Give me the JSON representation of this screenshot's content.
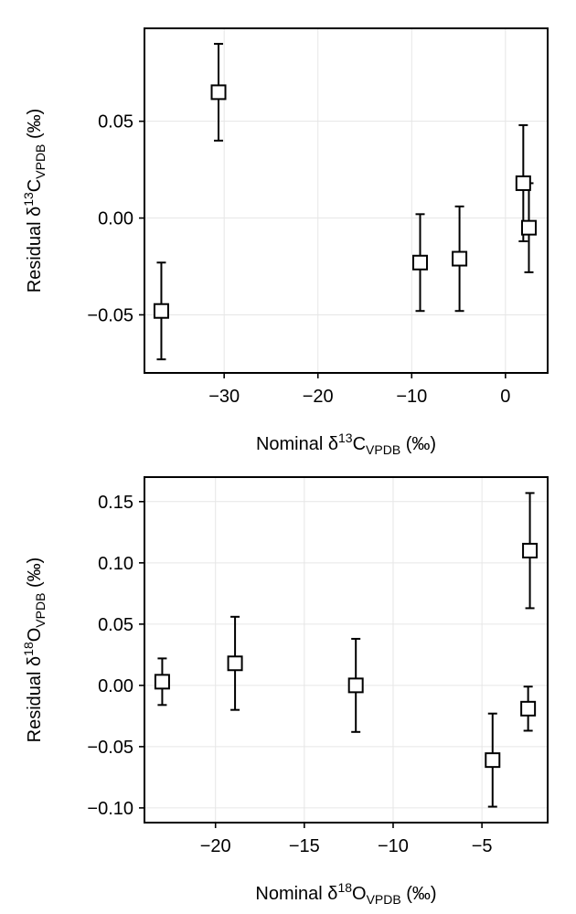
{
  "chart_data": [
    {
      "type": "scatter",
      "id": "carbon",
      "xlabel": {
        "pre": "Nominal δ",
        "sup": "13",
        "mid": "C",
        "sub": "VPDB",
        "post": " (‰)"
      },
      "ylabel": {
        "pre": "Residual δ",
        "sup": "13",
        "mid": "C",
        "sub": "VPDB",
        "post": " (‰)"
      },
      "xlim": [
        -38.5,
        4.5
      ],
      "ylim": [
        -0.08,
        0.098
      ],
      "xticks": [
        -30,
        -20,
        -10,
        0
      ],
      "xtick_labels": [
        "−30",
        "−20",
        "−10",
        "0"
      ],
      "yticks": [
        -0.05,
        0.0,
        0.05
      ],
      "ytick_labels": [
        "−0.05",
        "0.00",
        "0.05"
      ],
      "grid": true,
      "marker": "open-square",
      "points": [
        {
          "x": -36.7,
          "y": -0.048,
          "err": 0.025
        },
        {
          "x": -30.6,
          "y": 0.065,
          "err": 0.025
        },
        {
          "x": -9.1,
          "y": -0.023,
          "err": 0.025
        },
        {
          "x": -4.9,
          "y": -0.021,
          "err": 0.027
        },
        {
          "x": 1.9,
          "y": 0.018,
          "err": 0.03
        },
        {
          "x": 2.5,
          "y": -0.005,
          "err": 0.023
        }
      ]
    },
    {
      "type": "scatter",
      "id": "oxygen",
      "xlabel": {
        "pre": "Nominal δ",
        "sup": "18",
        "mid": "O",
        "sub": "VPDB",
        "post": " (‰)"
      },
      "ylabel": {
        "pre": "Residual δ",
        "sup": "18",
        "mid": "O",
        "sub": "VPDB",
        "post": " (‰)"
      },
      "xlim": [
        -24.0,
        -1.3
      ],
      "ylim": [
        -0.112,
        0.17
      ],
      "xticks": [
        -20,
        -15,
        -10,
        -5
      ],
      "xtick_labels": [
        "−20",
        "−15",
        "−10",
        "−5"
      ],
      "yticks": [
        -0.1,
        -0.05,
        0.0,
        0.05,
        0.1,
        0.15
      ],
      "ytick_labels": [
        "−0.10",
        "−0.05",
        "0.00",
        "0.05",
        "0.10",
        "0.15"
      ],
      "grid": true,
      "marker": "open-square",
      "points": [
        {
          "x": -23.0,
          "y": 0.003,
          "err": 0.019
        },
        {
          "x": -18.9,
          "y": 0.018,
          "err": 0.038
        },
        {
          "x": -12.1,
          "y": 0.0,
          "err": 0.038
        },
        {
          "x": -4.4,
          "y": -0.061,
          "err": 0.038
        },
        {
          "x": -2.4,
          "y": -0.019,
          "err": 0.018
        },
        {
          "x": -2.3,
          "y": 0.11,
          "err": 0.047
        }
      ]
    }
  ]
}
